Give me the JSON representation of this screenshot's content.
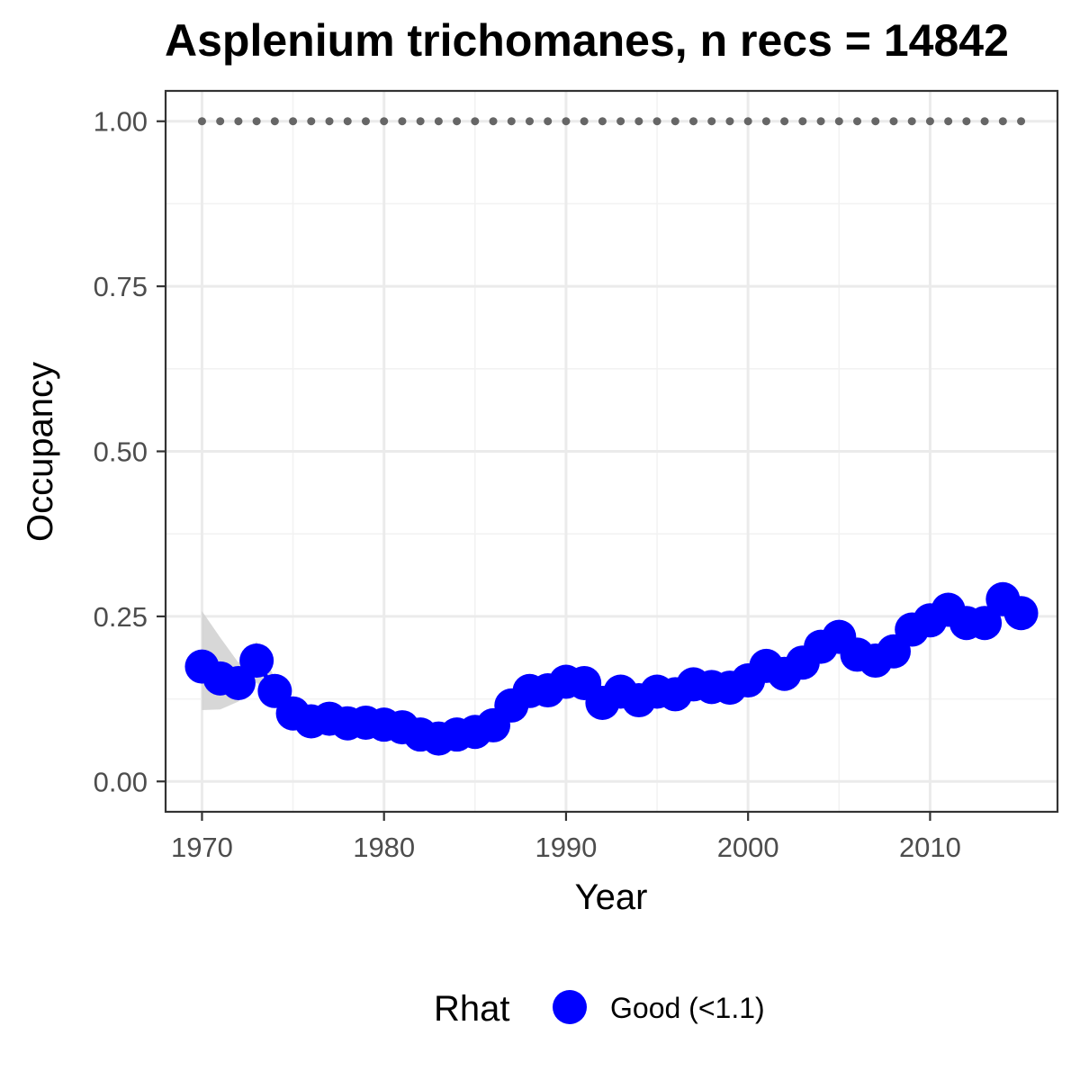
{
  "chart_data": {
    "type": "line",
    "title": "Asplenium trichomanes, n recs = 14842",
    "xlabel": "Year",
    "ylabel": "Occupancy",
    "xlim": [
      1968,
      2017
    ],
    "ylim": [
      -0.046,
      1.046
    ],
    "x_ticks": [
      1970,
      1980,
      1990,
      2000,
      2010
    ],
    "y_ticks": [
      0.0,
      0.25,
      0.5,
      0.75,
      1.0
    ],
    "y_tick_labels": [
      "0.00",
      "0.25",
      "0.50",
      "0.75",
      "1.00"
    ],
    "grid": true,
    "x": [
      1970,
      1971,
      1972,
      1973,
      1974,
      1975,
      1976,
      1977,
      1978,
      1979,
      1980,
      1981,
      1982,
      1983,
      1984,
      1985,
      1986,
      1987,
      1988,
      1989,
      1990,
      1991,
      1992,
      1993,
      1994,
      1995,
      1996,
      1997,
      1998,
      1999,
      2000,
      2001,
      2002,
      2003,
      2004,
      2005,
      2006,
      2007,
      2008,
      2009,
      2010,
      2011,
      2012,
      2013,
      2014,
      2015
    ],
    "series": [
      {
        "values": [
          0.174,
          0.156,
          0.149,
          0.183,
          0.137,
          0.103,
          0.091,
          0.095,
          0.088,
          0.089,
          0.086,
          0.082,
          0.071,
          0.065,
          0.071,
          0.075,
          0.085,
          0.115,
          0.137,
          0.138,
          0.151,
          0.149,
          0.119,
          0.136,
          0.123,
          0.136,
          0.132,
          0.147,
          0.143,
          0.142,
          0.153,
          0.175,
          0.163,
          0.18,
          0.204,
          0.219,
          0.192,
          0.183,
          0.197,
          0.23,
          0.244,
          0.26,
          0.24,
          0.24,
          0.276,
          0.255
        ],
        "color": "#0000ff"
      }
    ],
    "ci_lower": [
      0.108,
      0.109,
      0.121,
      0.15,
      0.118,
      0.091,
      0.08,
      0.083,
      0.078,
      0.078,
      0.076,
      0.072,
      0.062,
      0.056,
      0.062,
      0.066,
      0.076,
      0.104,
      0.126,
      0.127,
      0.14,
      0.138,
      0.108,
      0.125,
      0.112,
      0.125,
      0.121,
      0.136,
      0.132,
      0.131,
      0.142,
      0.164,
      0.152,
      0.169,
      0.193,
      0.208,
      0.181,
      0.172,
      0.186,
      0.219,
      0.233,
      0.249,
      0.229,
      0.229,
      0.265,
      0.244
    ],
    "ci_upper": [
      0.258,
      0.218,
      0.18,
      0.212,
      0.157,
      0.116,
      0.102,
      0.108,
      0.1,
      0.101,
      0.097,
      0.093,
      0.082,
      0.076,
      0.082,
      0.086,
      0.096,
      0.127,
      0.149,
      0.15,
      0.163,
      0.161,
      0.131,
      0.148,
      0.135,
      0.148,
      0.144,
      0.159,
      0.155,
      0.154,
      0.165,
      0.187,
      0.175,
      0.192,
      0.216,
      0.231,
      0.204,
      0.195,
      0.209,
      0.242,
      0.256,
      0.272,
      0.252,
      0.252,
      0.288,
      0.267
    ],
    "ci_color": "#d0d0d0",
    "reference_line": {
      "y": 1.0,
      "style": "dotted",
      "color": "#666666"
    },
    "legend": {
      "title": "Rhat",
      "entries": [
        {
          "label": "Good (<1.1)",
          "color": "#0000ff"
        }
      ],
      "position": "bottom"
    }
  }
}
